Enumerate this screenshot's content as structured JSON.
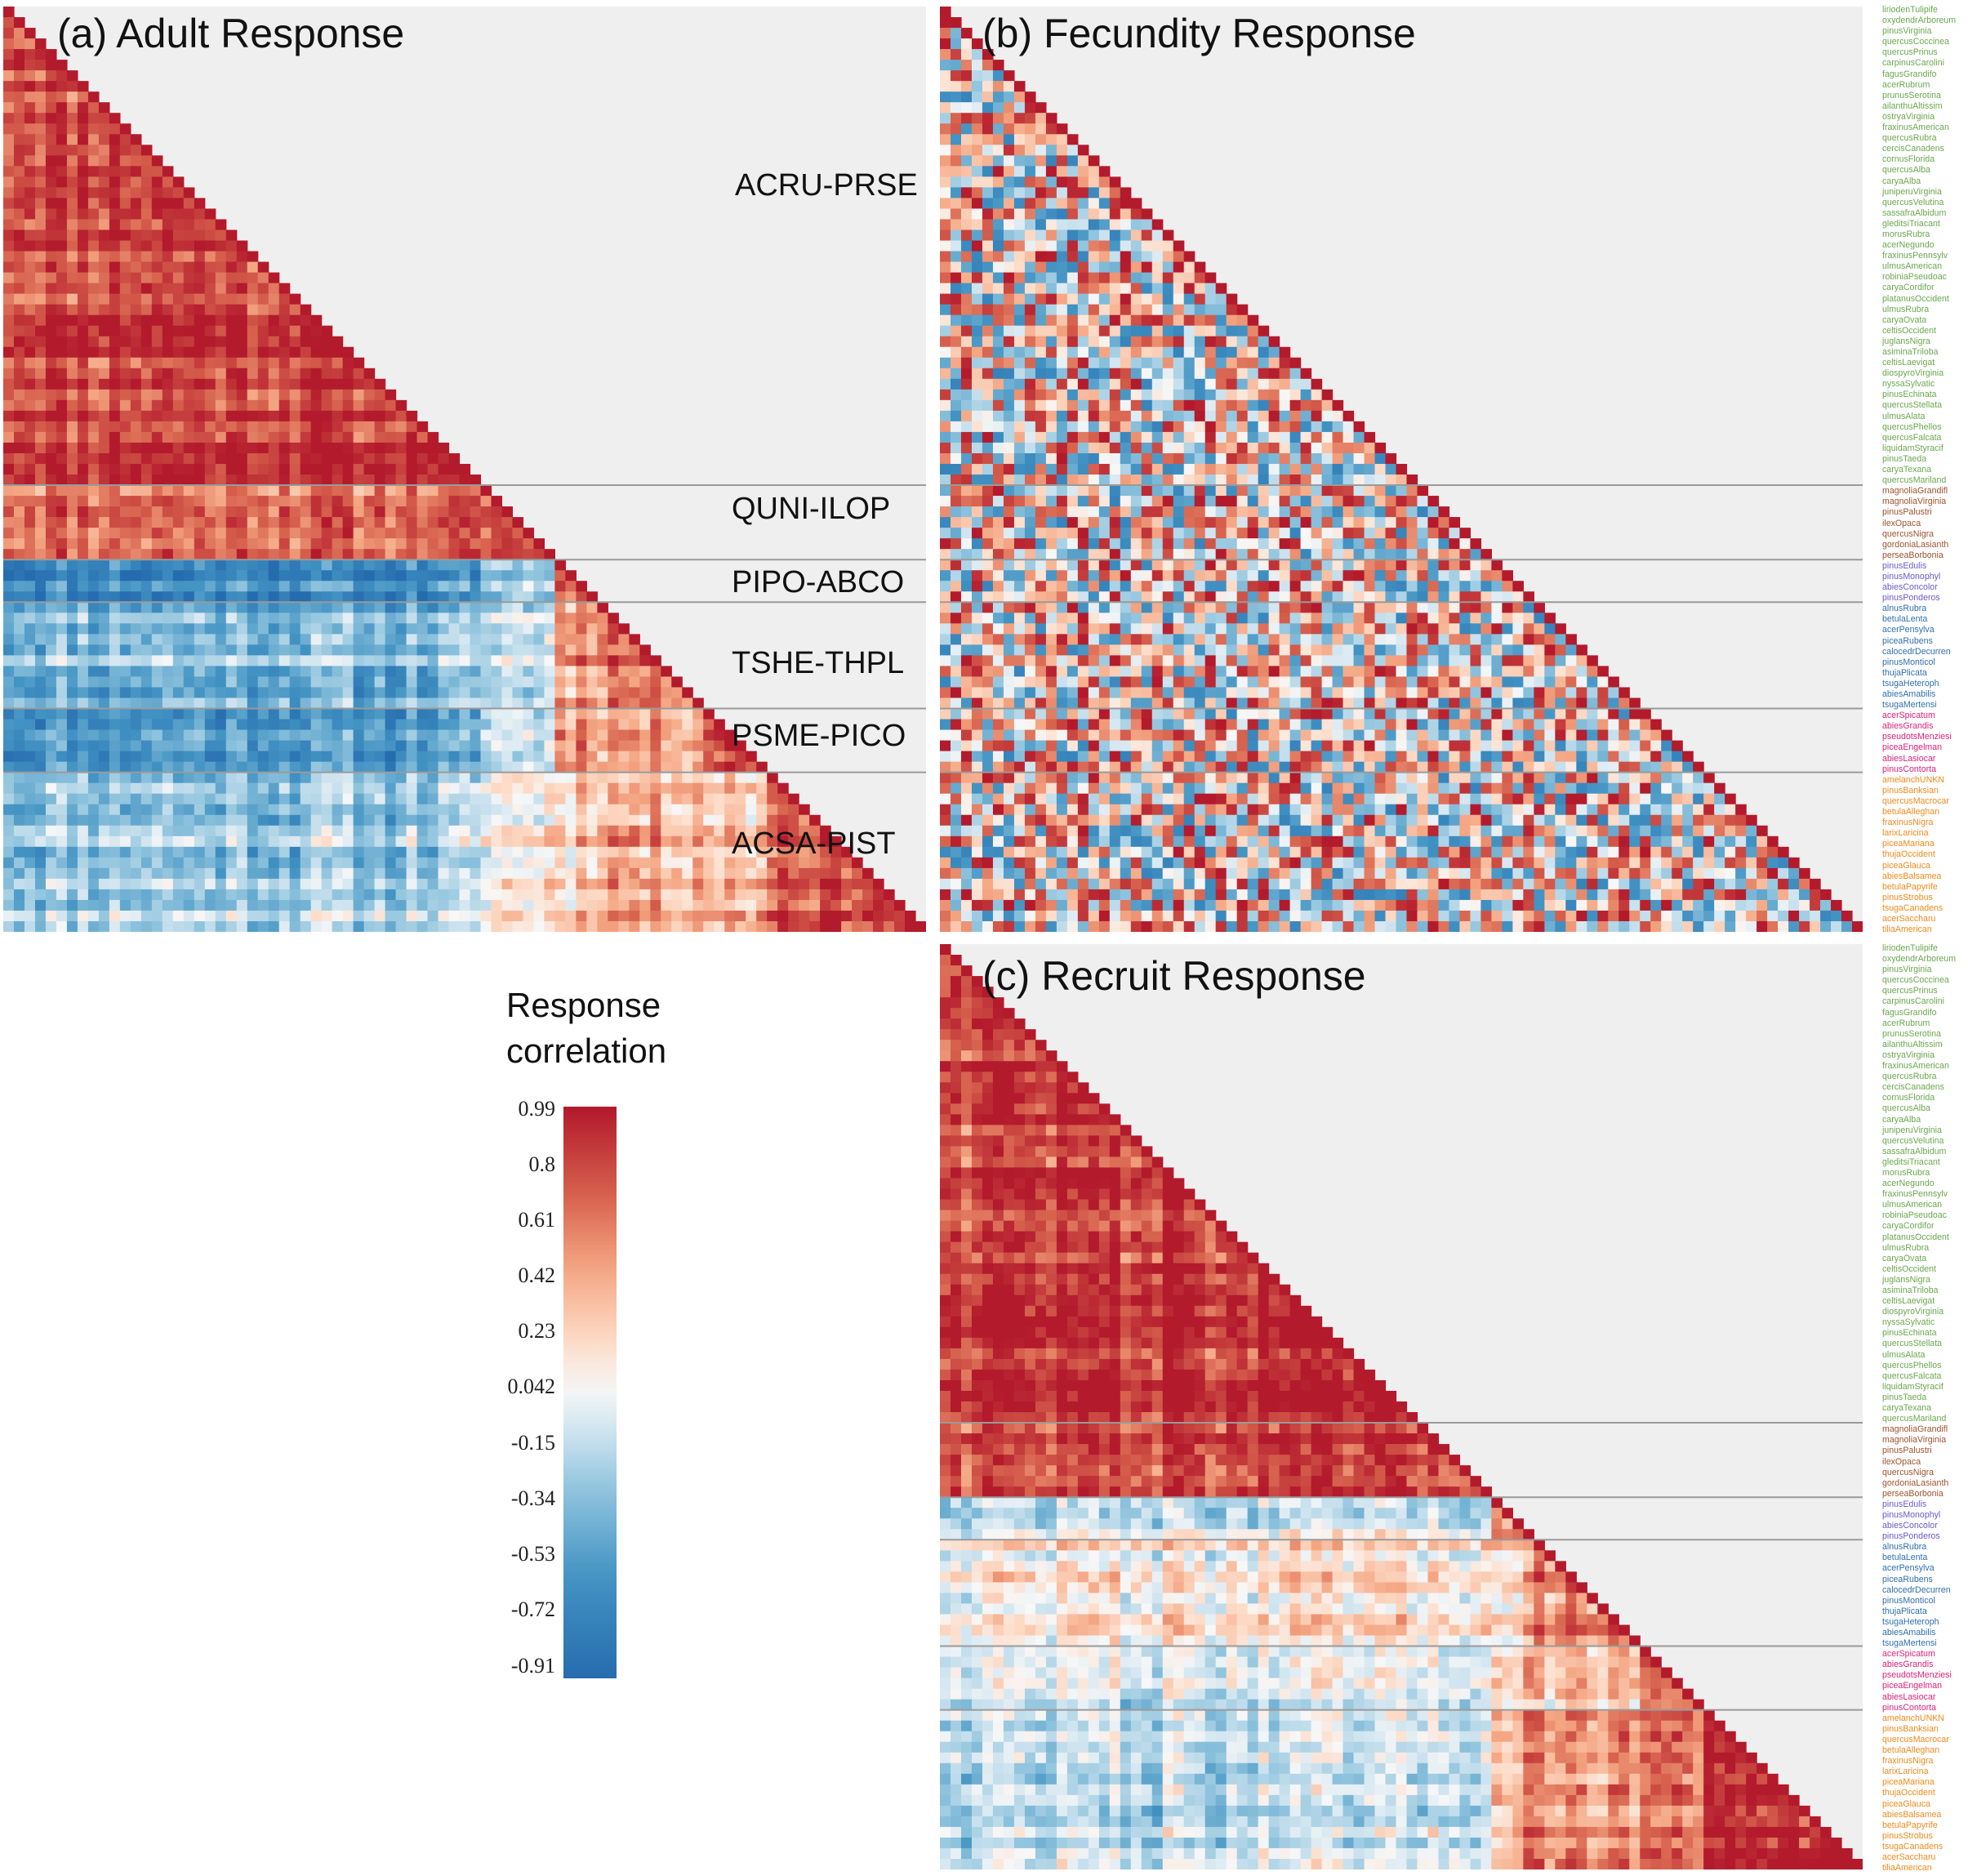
{
  "panels": {
    "adult": {
      "title": "(a) Adult Response"
    },
    "fecundity": {
      "title": "(b) Fecundity Response"
    },
    "recruit": {
      "title": "(c) Recruit Response"
    }
  },
  "group_labels": [
    "ACRU-PRSE",
    "QUNI-ILOP",
    "PIPO-ABCO",
    "TSHE-THPL",
    "PSME-PICO",
    "ACSA-PIST"
  ],
  "legend": {
    "title_line1": "Response",
    "title_line2": "correlation",
    "ticks": [
      "0.99",
      "0.8",
      "0.61",
      "0.42",
      "0.23",
      "0.042",
      "-0.15",
      "-0.34",
      "-0.53",
      "-0.72",
      "-0.91"
    ]
  },
  "colors": {
    "group1": "#6aa84f",
    "group2": "#a0522d",
    "group3": "#6a5acd",
    "group4": "#2f6fb0",
    "group5": "#e0207a",
    "group6": "#f08a1c",
    "high": "#b2182b",
    "mid": "#f7f7f7",
    "low": "#2166ac"
  },
  "species": [
    {
      "name": "liriodenTulipife",
      "group": 1
    },
    {
      "name": "oxydendrArboreum",
      "group": 1
    },
    {
      "name": "pinusVirginia",
      "group": 1
    },
    {
      "name": "quercusCoccinea",
      "group": 1
    },
    {
      "name": "quercusPrinus",
      "group": 1
    },
    {
      "name": "carpinusCarolini",
      "group": 1
    },
    {
      "name": "fagusGrandifo",
      "group": 1
    },
    {
      "name": "acerRubrum",
      "group": 1
    },
    {
      "name": "prunusSerotina",
      "group": 1
    },
    {
      "name": "ailanthuAltissim",
      "group": 1
    },
    {
      "name": "ostryaVirginia",
      "group": 1
    },
    {
      "name": "fraxinusAmerican",
      "group": 1
    },
    {
      "name": "quercusRubra",
      "group": 1
    },
    {
      "name": "cercisCanadens",
      "group": 1
    },
    {
      "name": "cornusFlorida",
      "group": 1
    },
    {
      "name": "quercusAlba",
      "group": 1
    },
    {
      "name": "caryaAlba",
      "group": 1
    },
    {
      "name": "juniperuVirginia",
      "group": 1
    },
    {
      "name": "quercusVelutina",
      "group": 1
    },
    {
      "name": "sassafraAlbidum",
      "group": 1
    },
    {
      "name": "gleditsiTriacant",
      "group": 1
    },
    {
      "name": "morusRubra",
      "group": 1
    },
    {
      "name": "acerNegundo",
      "group": 1
    },
    {
      "name": "fraxinusPennsylv",
      "group": 1
    },
    {
      "name": "ulmusAmerican",
      "group": 1
    },
    {
      "name": "robiniaPseudoac",
      "group": 1
    },
    {
      "name": "caryaCordifor",
      "group": 1
    },
    {
      "name": "platanusOccident",
      "group": 1
    },
    {
      "name": "ulmusRubra",
      "group": 1
    },
    {
      "name": "caryaOvata",
      "group": 1
    },
    {
      "name": "celtisOccident",
      "group": 1
    },
    {
      "name": "juglansNigra",
      "group": 1
    },
    {
      "name": "asiminaTriloba",
      "group": 1
    },
    {
      "name": "celtisLaevigat",
      "group": 1
    },
    {
      "name": "diospyroVirginia",
      "group": 1
    },
    {
      "name": "nyssaSylvatic",
      "group": 1
    },
    {
      "name": "pinusEchinata",
      "group": 1
    },
    {
      "name": "quercusStellata",
      "group": 1
    },
    {
      "name": "ulmusAlata",
      "group": 1
    },
    {
      "name": "quercusPhellos",
      "group": 1
    },
    {
      "name": "quercusFalcata",
      "group": 1
    },
    {
      "name": "liquidamStyracif",
      "group": 1
    },
    {
      "name": "pinusTaeda",
      "group": 1
    },
    {
      "name": "caryaTexana",
      "group": 1
    },
    {
      "name": "quercusMariland",
      "group": 1
    },
    {
      "name": "magnoliaGrandifl",
      "group": 2
    },
    {
      "name": "magnoliaVirginia",
      "group": 2
    },
    {
      "name": "pinusPalustri",
      "group": 2
    },
    {
      "name": "ilexOpaca",
      "group": 2
    },
    {
      "name": "quercusNigra",
      "group": 2
    },
    {
      "name": "gordoniaLasianth",
      "group": 2
    },
    {
      "name": "perseaBorbonia",
      "group": 2
    },
    {
      "name": "pinusEdulis",
      "group": 3
    },
    {
      "name": "pinusMonophyl",
      "group": 3
    },
    {
      "name": "abiesConcolor",
      "group": 3
    },
    {
      "name": "pinusPonderos",
      "group": 3
    },
    {
      "name": "alnusRubra",
      "group": 4
    },
    {
      "name": "betulaLenta",
      "group": 4
    },
    {
      "name": "acerPensylva",
      "group": 4
    },
    {
      "name": "piceaRubens",
      "group": 4
    },
    {
      "name": "calocedrDecurren",
      "group": 4
    },
    {
      "name": "pinusMonticol",
      "group": 4
    },
    {
      "name": "thujaPlicata",
      "group": 4
    },
    {
      "name": "tsugaHeteroph",
      "group": 4
    },
    {
      "name": "abiesAmabilis",
      "group": 4
    },
    {
      "name": "tsugaMertensi",
      "group": 4
    },
    {
      "name": "acerSpicatum",
      "group": 5
    },
    {
      "name": "abiesGrandis",
      "group": 5
    },
    {
      "name": "pseudotsMenziesi",
      "group": 5
    },
    {
      "name": "piceaEngelman",
      "group": 5
    },
    {
      "name": "abiesLasiocar",
      "group": 5
    },
    {
      "name": "pinusContorta",
      "group": 5
    },
    {
      "name": "amelanchUNKN",
      "group": 6
    },
    {
      "name": "pinusBanksian",
      "group": 6
    },
    {
      "name": "quercusMacrocar",
      "group": 6
    },
    {
      "name": "betulaAlleghan",
      "group": 6
    },
    {
      "name": "fraxinusNigra",
      "group": 6
    },
    {
      "name": "larixLaricina",
      "group": 6
    },
    {
      "name": "piceaMariana",
      "group": 6
    },
    {
      "name": "thujaOccident",
      "group": 6
    },
    {
      "name": "piceaGlauca",
      "group": 6
    },
    {
      "name": "abiesBalsamea",
      "group": 6
    },
    {
      "name": "betulaPapyrife",
      "group": 6
    },
    {
      "name": "pinusStrobus",
      "group": 6
    },
    {
      "name": "tsugaCanadens",
      "group": 6
    },
    {
      "name": "acerSaccharu",
      "group": 6
    },
    {
      "name": "tiliaAmerican",
      "group": 6
    }
  ],
  "chart_data": [
    {
      "type": "heatmap",
      "title": "(a) Adult Response",
      "n_species": 87,
      "group_boundaries": [
        45,
        52,
        56,
        66,
        72
      ],
      "value_range": [
        -0.91,
        0.99
      ],
      "pattern": "strong positive within eastern groups; negative between eastern and western groups"
    },
    {
      "type": "heatmap",
      "title": "(b) Fecundity Response",
      "n_species": 87,
      "group_boundaries": [
        45,
        52,
        56,
        66,
        72
      ],
      "value_range": [
        -0.91,
        0.99
      ],
      "pattern": "mixed positive and negative correlations throughout"
    },
    {
      "type": "heatmap",
      "title": "(c) Recruit Response",
      "n_species": 87,
      "group_boundaries": [
        45,
        52,
        56,
        66,
        72
      ],
      "value_range": [
        -0.91,
        0.99
      ],
      "pattern": "strong positive among eastern groups; weak/negative with western groups"
    }
  ]
}
